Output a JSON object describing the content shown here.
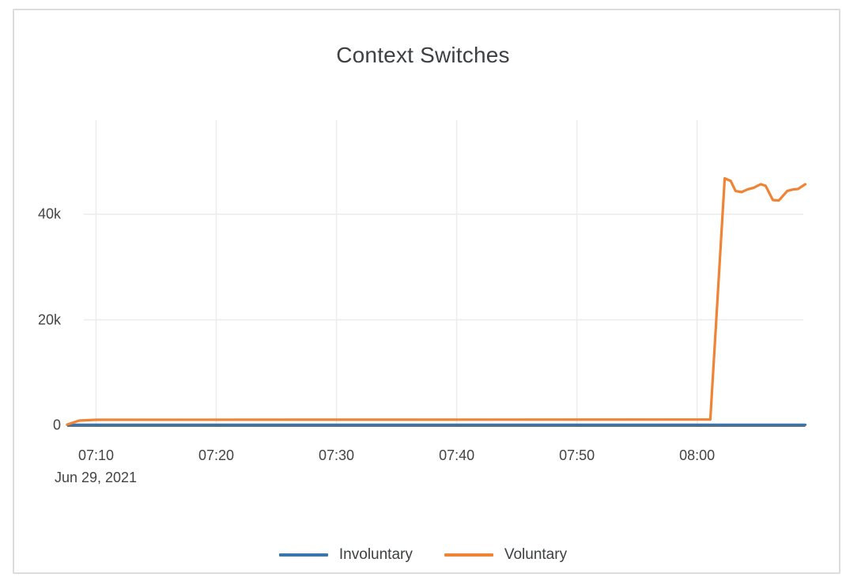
{
  "chart_data": {
    "type": "line",
    "title": "Context Switches",
    "x_axis": {
      "tick_minutes_after_0700": [
        10,
        20,
        30,
        40,
        50,
        60
      ],
      "tick_labels": [
        "07:10",
        "07:20",
        "07:30",
        "07:40",
        "07:50",
        "08:00"
      ],
      "date_label": "Jun 29, 2021",
      "domain_minutes_after_0700": [
        7.6,
        69.0
      ]
    },
    "y_axis": {
      "tick_values": [
        0,
        20000,
        40000
      ],
      "tick_labels": [
        "0",
        "20k",
        "40k"
      ],
      "ylim": [
        0,
        57800
      ]
    },
    "series": [
      {
        "name": "Involuntary",
        "color": "#3a76ab",
        "x_minutes": [
          7.6,
          69.0
        ],
        "values": [
          100,
          100
        ]
      },
      {
        "name": "Voluntary",
        "color": "#ef8435",
        "x_minutes": [
          7.6,
          8.6,
          10,
          61.1,
          62.3,
          62.8,
          63.2,
          63.7,
          64.2,
          64.7,
          65.3,
          65.7,
          66.3,
          66.8,
          67.5,
          68.0,
          68.4,
          69.0
        ],
        "values": [
          150,
          900,
          1050,
          1100,
          46800,
          46300,
          44400,
          44200,
          44700,
          45000,
          45700,
          45400,
          42700,
          42600,
          44400,
          44700,
          44800,
          45700
        ]
      }
    ],
    "grid": true,
    "grid_color": "#ececec",
    "zero_line_color": "#444444",
    "axis_text_color": "#444444",
    "legend_position": "bottom-center"
  }
}
